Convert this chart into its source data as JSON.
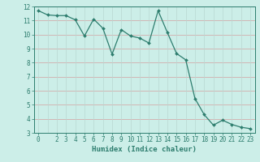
{
  "x": [
    0,
    1,
    2,
    3,
    4,
    5,
    6,
    7,
    8,
    9,
    10,
    11,
    12,
    13,
    14,
    15,
    16,
    17,
    18,
    19,
    20,
    21,
    22,
    23
  ],
  "y": [
    11.7,
    11.4,
    11.35,
    11.35,
    11.05,
    9.9,
    11.1,
    10.45,
    8.6,
    10.35,
    9.9,
    9.75,
    9.4,
    11.7,
    10.15,
    8.65,
    8.2,
    5.45,
    4.3,
    3.55,
    3.9,
    3.6,
    3.4,
    3.3
  ],
  "line_color": "#2d7d6e",
  "marker": "D",
  "marker_size": 2.0,
  "line_width": 0.9,
  "background_color": "#cceee8",
  "grid_color_major": "#b8d8d2",
  "grid_color_minor": "#e0b0b0",
  "xlabel": "Humidex (Indice chaleur)",
  "xlim": [
    -0.5,
    23.5
  ],
  "ylim": [
    3,
    12
  ],
  "yticks": [
    3,
    4,
    5,
    6,
    7,
    8,
    9,
    10,
    11,
    12
  ],
  "xticks": [
    0,
    2,
    3,
    4,
    5,
    6,
    7,
    8,
    9,
    10,
    11,
    12,
    13,
    14,
    15,
    16,
    17,
    18,
    19,
    20,
    21,
    22,
    23
  ],
  "tick_fontsize": 5.5,
  "xlabel_fontsize": 6.5
}
